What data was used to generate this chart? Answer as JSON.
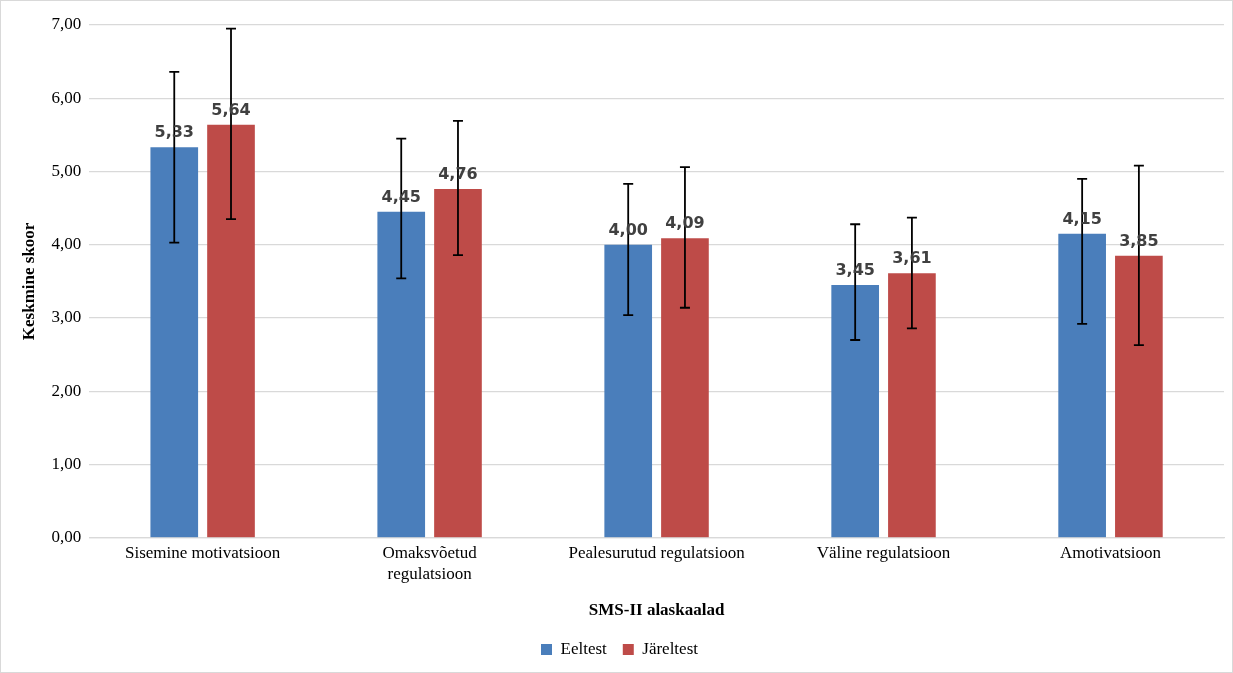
{
  "chart_data": {
    "type": "bar",
    "xlabel": "SMS-II alaskaalad",
    "ylabel": "Keskmine skoor",
    "categories": [
      "Sisemine motivatsioon",
      "Omaksvõetud\nregulatsioon",
      "Pealesurutud regulatsioon",
      "Väline regulatsioon",
      "Amotivatsioon"
    ],
    "series": [
      {
        "name": "Eeltest",
        "color": "#4a7ebb",
        "values": [
          5.33,
          4.45,
          4.0,
          3.45,
          4.15
        ],
        "value_labels": [
          "5,33",
          "4,45",
          "4,00",
          "3,45",
          "4,15"
        ],
        "errors": [
          [
            4.03,
            6.36
          ],
          [
            3.54,
            5.45
          ],
          [
            3.04,
            4.83
          ],
          [
            2.7,
            4.28
          ],
          [
            2.92,
            4.9
          ]
        ]
      },
      {
        "name": "Järeltest",
        "color": "#be4b48",
        "values": [
          5.64,
          4.76,
          4.09,
          3.61,
          3.85
        ],
        "value_labels": [
          "5,64",
          "4,76",
          "4,09",
          "3,61",
          "3,85"
        ],
        "errors": [
          [
            4.35,
            6.95
          ],
          [
            3.86,
            5.69
          ],
          [
            3.14,
            5.06
          ],
          [
            2.86,
            4.37
          ],
          [
            2.63,
            5.08
          ]
        ]
      }
    ],
    "ylim": [
      0,
      7
    ],
    "yticks": [
      {
        "value": 0,
        "label": "0,00"
      },
      {
        "value": 1,
        "label": "1,00"
      },
      {
        "value": 2,
        "label": "2,00"
      },
      {
        "value": 3,
        "label": "3,00"
      },
      {
        "value": 4,
        "label": "4,00"
      },
      {
        "value": 5,
        "label": "5,00"
      },
      {
        "value": 6,
        "label": "6,00"
      },
      {
        "value": 7,
        "label": "7,00"
      }
    ],
    "grid": "y",
    "legend": "bottom"
  }
}
